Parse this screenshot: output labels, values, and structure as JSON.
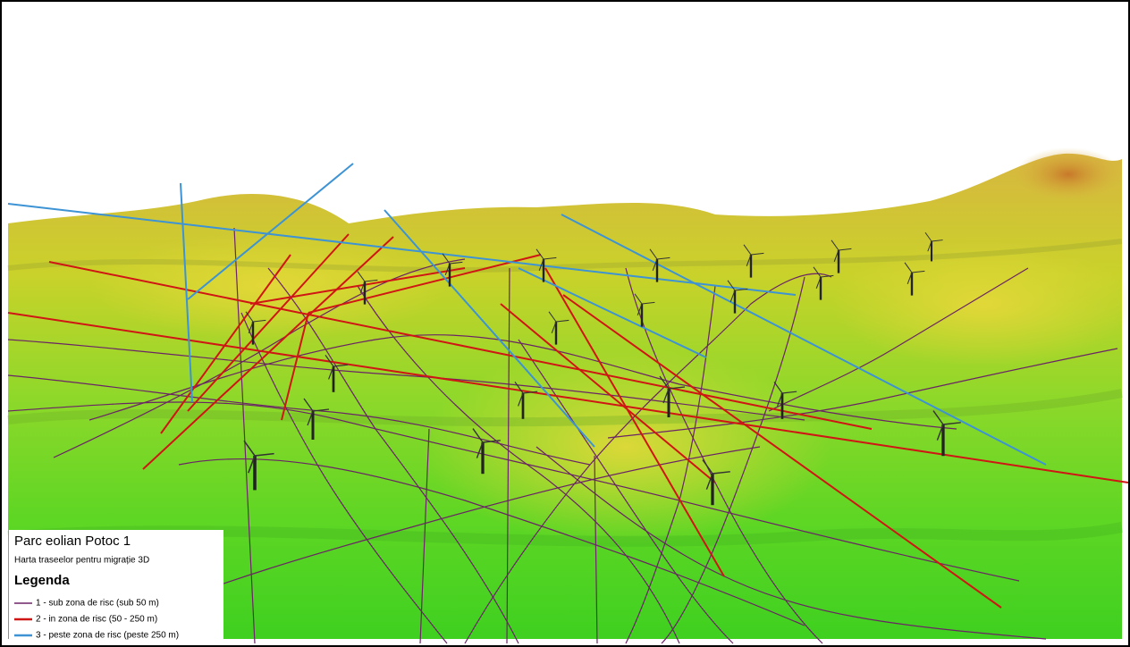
{
  "map": {
    "title": "Parc eolian Potoc 1",
    "subtitle": "Harta traseelor pentru migrație 3D",
    "legend_title": "Legenda",
    "legend": [
      {
        "label": "1 - sub zona de risc (sub 50 m)",
        "color": "#6b2466"
      },
      {
        "label": "2 - in zona de risc (50 - 250 m)",
        "color": "#d01515"
      },
      {
        "label": "3 - peste zona de risc (peste 250 m)",
        "color": "#3d93d4"
      }
    ]
  }
}
